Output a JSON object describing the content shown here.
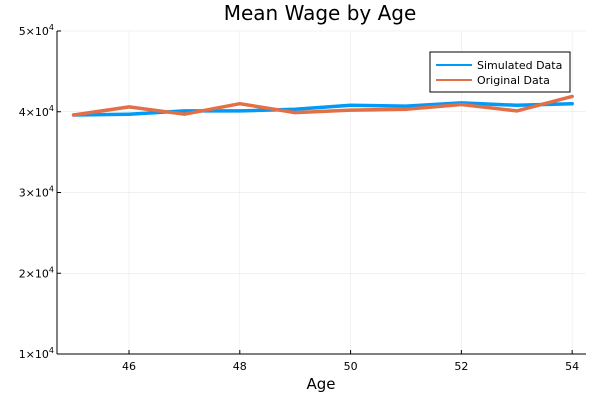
{
  "chart_data": {
    "type": "line",
    "title": "Mean Wage by Age",
    "xlabel": "Age",
    "ylabel": "",
    "xlim": [
      44.7,
      54.25
    ],
    "ylim": [
      10000,
      50000
    ],
    "x_ticks": [
      46,
      48,
      50,
      52,
      54
    ],
    "x_tick_labels": [
      "46",
      "48",
      "50",
      "52",
      "54"
    ],
    "y_ticks": [
      10000,
      20000,
      30000,
      40000,
      50000
    ],
    "y_tick_mantissa": [
      "1",
      "2",
      "3",
      "4",
      "5"
    ],
    "y_tick_times": "×",
    "y_tick_base": "10",
    "y_tick_exponent": "4",
    "grid": true,
    "legend_position": "top-right",
    "x": [
      45,
      46,
      47,
      48,
      49,
      50,
      51,
      52,
      53,
      54
    ],
    "series": [
      {
        "name": "Simulated Data",
        "color": "#009af9",
        "values": [
          39600,
          39700,
          40100,
          40100,
          40300,
          40800,
          40700,
          41100,
          40800,
          41000
        ]
      },
      {
        "name": "Original Data",
        "color": "#e26f46",
        "values": [
          39600,
          40600,
          39700,
          41000,
          39900,
          40200,
          40300,
          40900,
          40100,
          41900
        ]
      }
    ]
  }
}
